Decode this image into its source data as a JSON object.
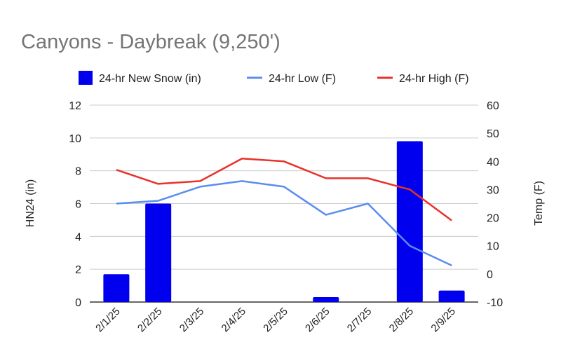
{
  "chart_data": {
    "type": "bar+line",
    "title": "Canyons - Daybreak (9,250')",
    "categories": [
      "2/1/25",
      "2/2/25",
      "2/3/25",
      "2/4/25",
      "2/5/25",
      "2/6/25",
      "2/7/25",
      "2/8/25",
      "2/9/25"
    ],
    "series": [
      {
        "name": "24-hr New Snow (in)",
        "type": "bar",
        "axis": "left",
        "color": "#0000ee",
        "values": [
          1.7,
          6.0,
          0,
          0,
          0,
          0.3,
          0,
          9.8,
          0.7
        ]
      },
      {
        "name": "24-hr Low (F)",
        "type": "line",
        "axis": "right",
        "color": "#5b8def",
        "values": [
          25,
          26,
          31,
          33,
          31,
          21,
          25,
          10,
          3
        ]
      },
      {
        "name": "24-hr High (F)",
        "type": "line",
        "axis": "right",
        "color": "#e8322a",
        "values": [
          37,
          32,
          33,
          41,
          40,
          34,
          34,
          30,
          19
        ]
      }
    ],
    "ylabel": "HN24 (in)",
    "ylim": [
      0,
      12
    ],
    "yticks": [
      "0",
      "2",
      "4",
      "6",
      "8",
      "10",
      "12"
    ],
    "y2label": "Temp (F)",
    "y2lim": [
      -10,
      60
    ],
    "y2ticks": [
      "-10",
      "0",
      "10",
      "20",
      "30",
      "40",
      "50",
      "60"
    ],
    "grid": true,
    "legend": "top"
  }
}
